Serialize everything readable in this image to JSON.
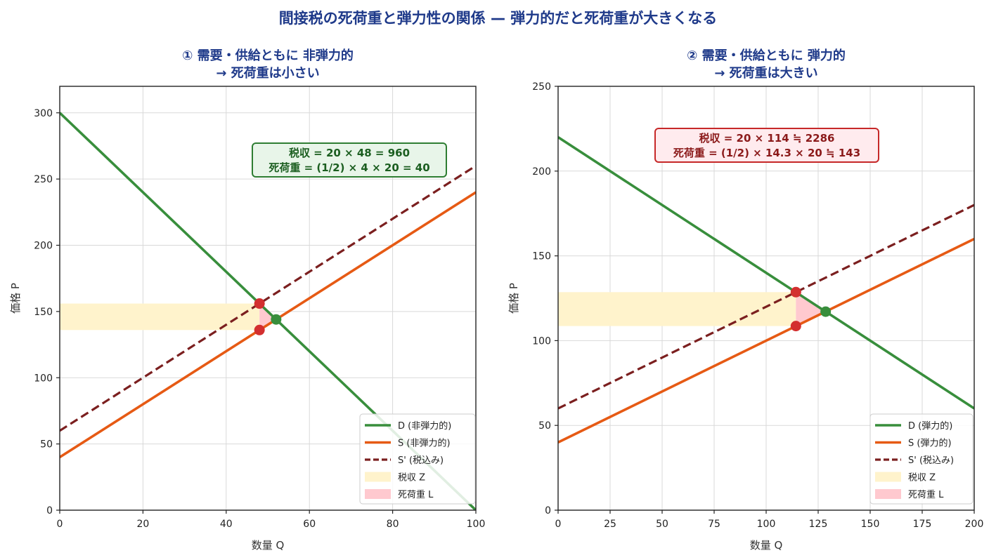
{
  "title": "間接税の死荷重と弾力性の関係 — 弾力的だと死荷重が大きくなる",
  "chart_data": [
    {
      "type": "line",
      "title_lines": [
        "① 需要・供給ともに 非弾力的",
        "→ 死荷重は小さい"
      ],
      "xlabel": "数量 Q",
      "ylabel": "価格 P",
      "xlim": [
        0,
        100
      ],
      "ylim": [
        0,
        320
      ],
      "xticks": [
        0,
        20,
        40,
        60,
        80,
        100
      ],
      "yticks": [
        0,
        50,
        100,
        150,
        200,
        250,
        300
      ],
      "grid": true,
      "legend_position": "lower-right",
      "series": [
        {
          "name": "D (非弾力的)",
          "kind": "line",
          "color": "#388e3c",
          "dash": false,
          "x": [
            0,
            100
          ],
          "y": [
            300,
            0
          ]
        },
        {
          "name": "S (非弾力的)",
          "kind": "line",
          "color": "#e65a14",
          "dash": false,
          "x": [
            0,
            100
          ],
          "y": [
            40,
            240
          ]
        },
        {
          "name": "S' (税込み)",
          "kind": "line",
          "color": "#7b1f1f",
          "dash": true,
          "x": [
            0,
            100
          ],
          "y": [
            60,
            260
          ]
        }
      ],
      "tax_area": {
        "name": "税収 Z",
        "color": "#fff3cc",
        "x": [
          0,
          48
        ],
        "y": [
          136,
          156
        ]
      },
      "deadweight": {
        "name": "死荷重 L",
        "color": "#ffc9cf",
        "points": [
          [
            48,
            156
          ],
          [
            48,
            136
          ],
          [
            52,
            144
          ]
        ]
      },
      "points": [
        {
          "x": 48,
          "y": 156,
          "color": "#d32f2f"
        },
        {
          "x": 48,
          "y": 136,
          "color": "#d32f2f"
        },
        {
          "x": 52,
          "y": 144,
          "color": "#388e3c"
        }
      ],
      "annotation": {
        "lines": [
          "税収 = 20 × 48 = 960",
          "死荷重 = (1/2) × 4 × 20 = 40"
        ],
        "text_color": "#1b5e20",
        "border_color": "#2e7d32",
        "bg_color": "#e8f5e9"
      }
    },
    {
      "type": "line",
      "title_lines": [
        "② 需要・供給ともに 弾力的",
        "→ 死荷重は大きい"
      ],
      "xlabel": "数量 Q",
      "ylabel": "価格 P",
      "xlim": [
        0,
        200
      ],
      "ylim": [
        0,
        250
      ],
      "xticks": [
        0,
        25,
        50,
        75,
        100,
        125,
        150,
        175,
        200
      ],
      "yticks": [
        0,
        50,
        100,
        150,
        200,
        250
      ],
      "grid": true,
      "legend_position": "lower-right",
      "series": [
        {
          "name": "D (弾力的)",
          "kind": "line",
          "color": "#388e3c",
          "dash": false,
          "x": [
            0,
            200
          ],
          "y": [
            220,
            60
          ]
        },
        {
          "name": "S (弾力的)",
          "kind": "line",
          "color": "#e65a14",
          "dash": false,
          "x": [
            0,
            200
          ],
          "y": [
            40,
            160
          ]
        },
        {
          "name": "S' (税込み)",
          "kind": "line",
          "color": "#7b1f1f",
          "dash": true,
          "x": [
            0,
            200
          ],
          "y": [
            60,
            180
          ]
        }
      ],
      "tax_area": {
        "name": "税収 Z",
        "color": "#fff3cc",
        "x": [
          0,
          114.3
        ],
        "y": [
          108.6,
          128.6
        ]
      },
      "deadweight": {
        "name": "死荷重 L",
        "color": "#ffc9cf",
        "points": [
          [
            114.3,
            128.6
          ],
          [
            114.3,
            108.6
          ],
          [
            128.6,
            117.1
          ]
        ]
      },
      "points": [
        {
          "x": 114.3,
          "y": 128.6,
          "color": "#d32f2f"
        },
        {
          "x": 114.3,
          "y": 108.6,
          "color": "#d32f2f"
        },
        {
          "x": 128.6,
          "y": 117.1,
          "color": "#388e3c"
        }
      ],
      "annotation": {
        "lines": [
          "税収 = 20 × 114 ≒ 2286",
          "死荷重 = (1/2) × 14.3 × 20 ≒ 143"
        ],
        "text_color": "#8b1a1a",
        "border_color": "#c62828",
        "bg_color": "#ffebee"
      }
    }
  ]
}
